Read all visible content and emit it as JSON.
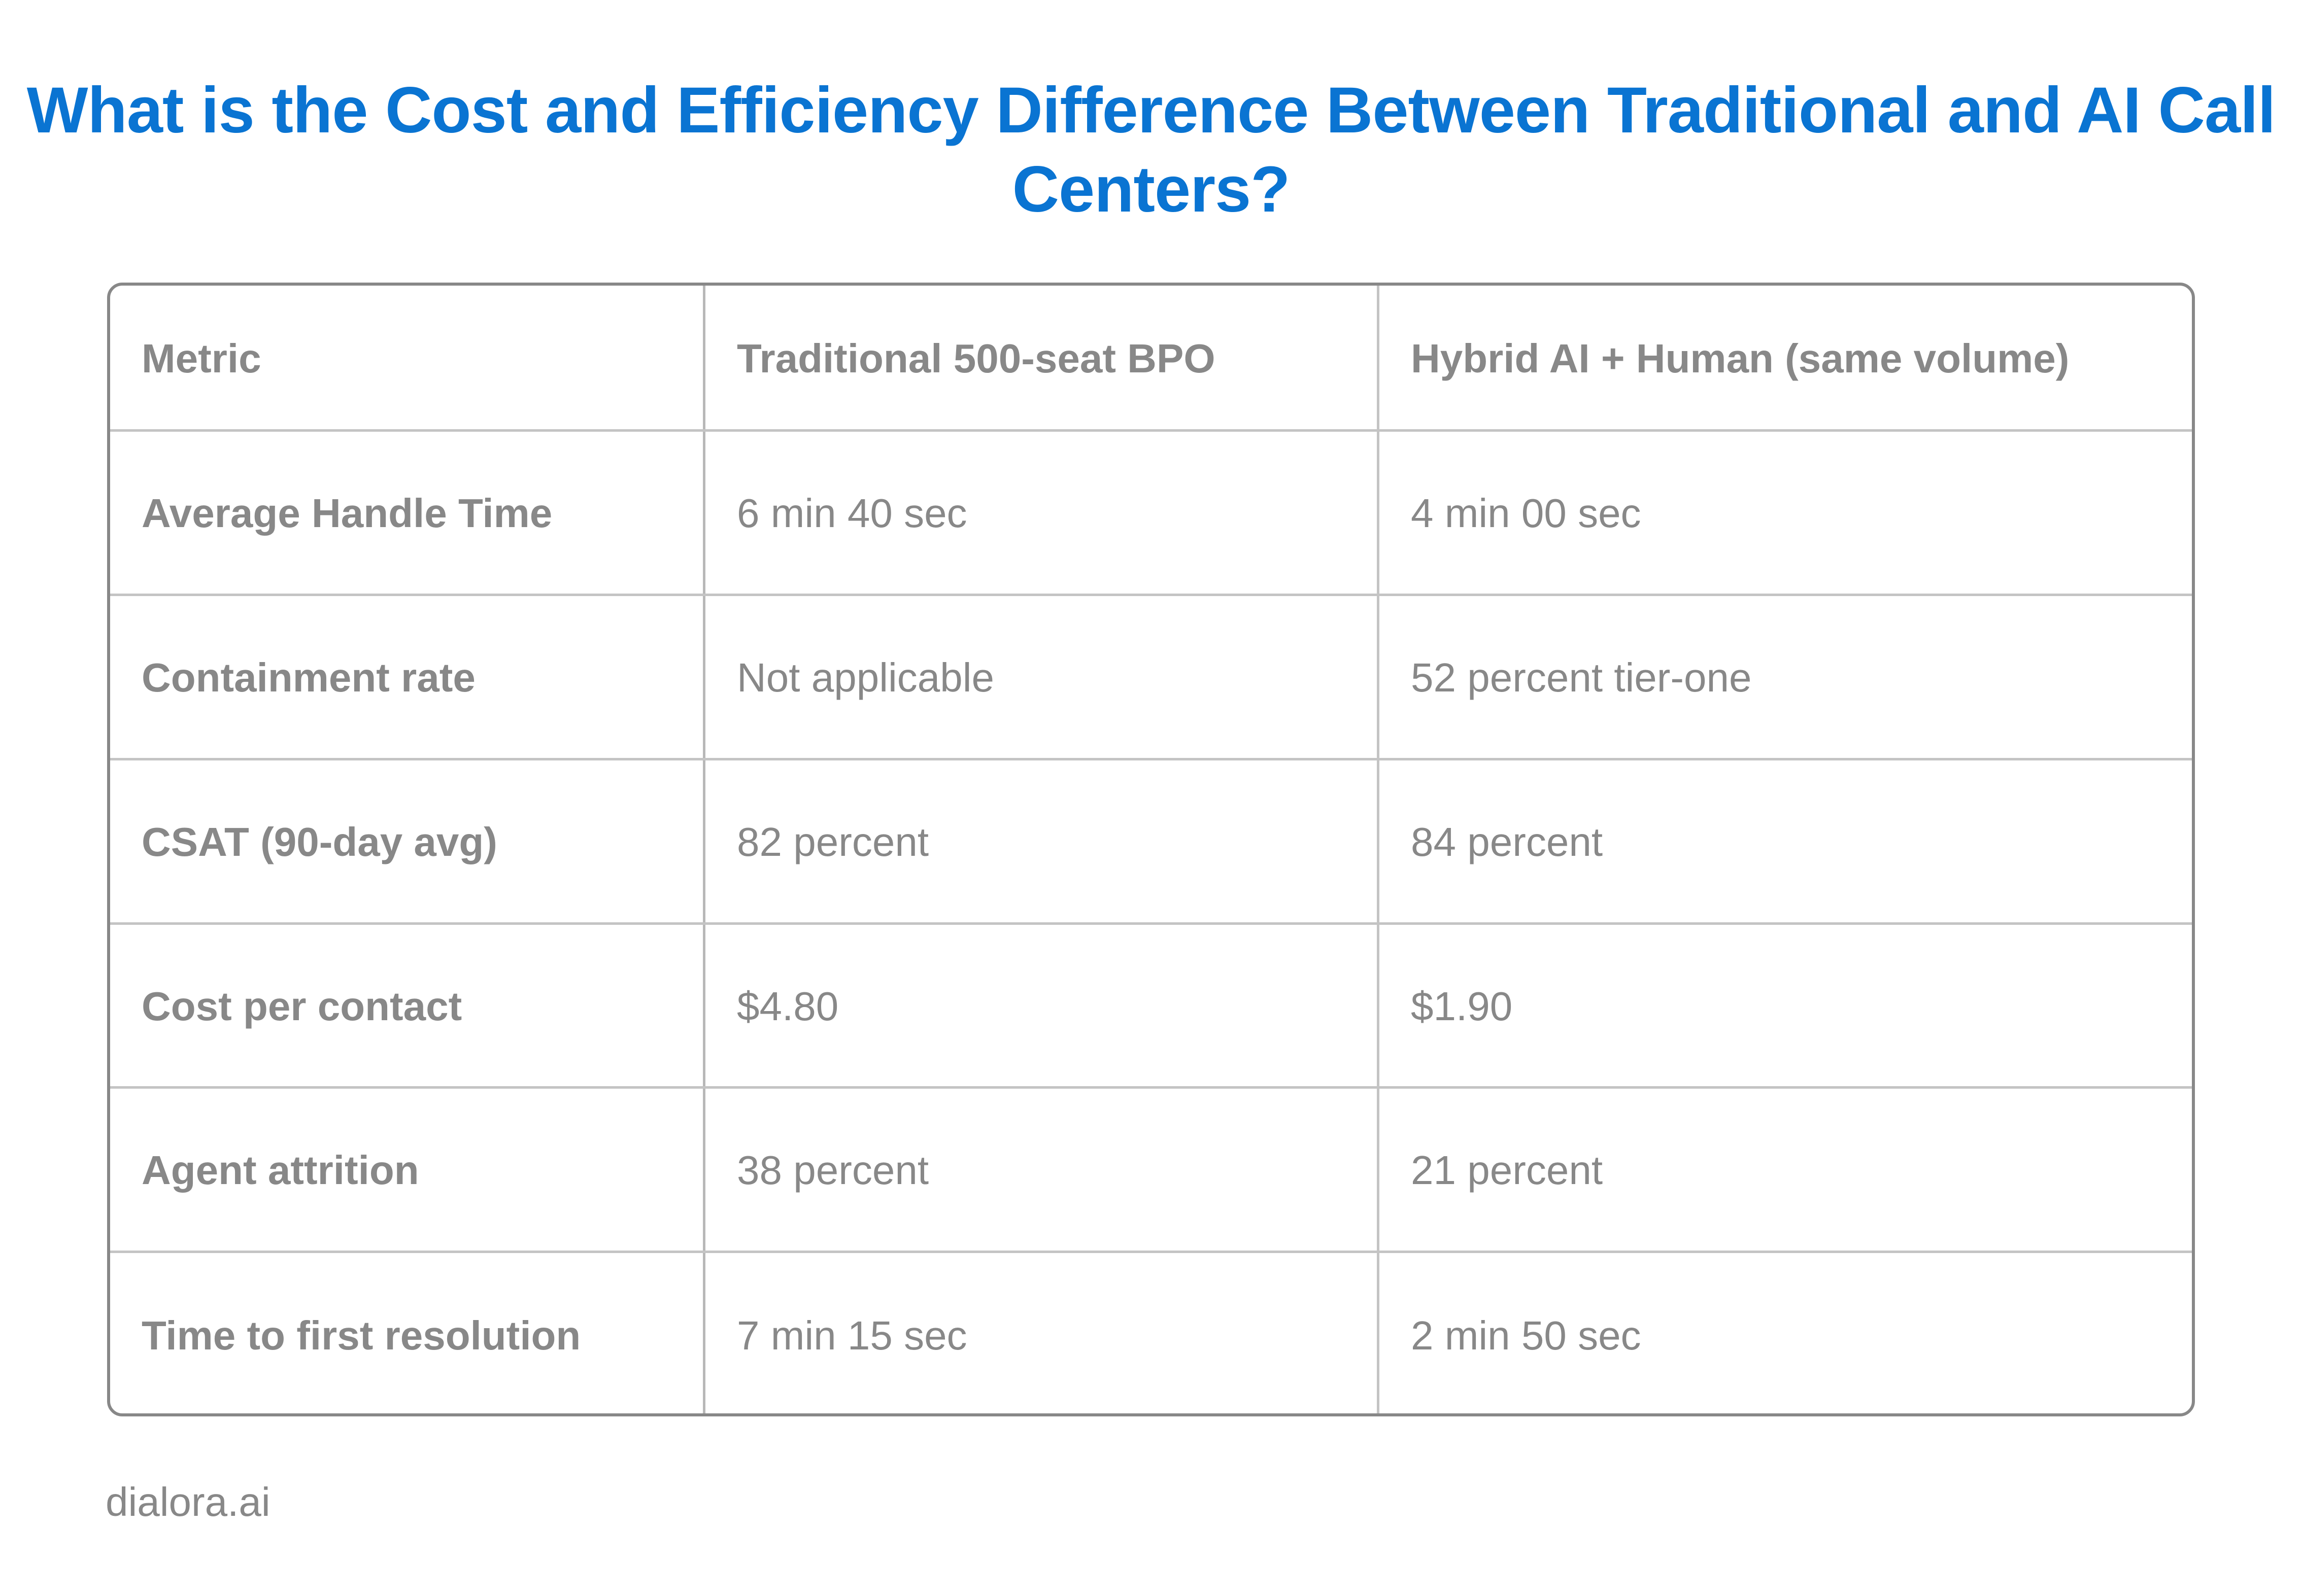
{
  "title": "What is the Cost and Efficiency Difference Between Traditional and AI Call Centers?",
  "table": {
    "headers": [
      "Metric",
      "Traditional 500-seat BPO",
      "Hybrid AI + Human (same volume)"
    ],
    "rows": [
      [
        "Average Handle Time",
        "6 min 40 sec",
        "4 min 00 sec"
      ],
      [
        "Containment rate",
        "Not applicable",
        "52 percent tier-one"
      ],
      [
        "CSAT (90-day avg)",
        "82 percent",
        "84 percent"
      ],
      [
        "Cost per contact",
        "$4.80",
        "$1.90"
      ],
      [
        "Agent attrition",
        "38 percent",
        "21 percent"
      ],
      [
        "Time to first resolution",
        "7 min 15 sec",
        "2 min 50 sec"
      ]
    ]
  },
  "footer": "dialora.ai",
  "colors": {
    "title": "#0a74d2",
    "text": "#888888",
    "border": "#888888",
    "gridline": "#c4c4c4"
  }
}
